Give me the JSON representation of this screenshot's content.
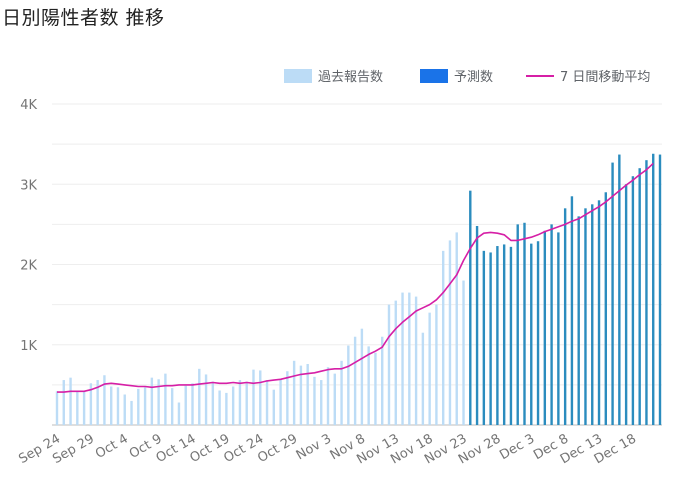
{
  "page": {
    "title": "日別陽性者数 推移"
  },
  "legend": {
    "reported_label": "過去報告数",
    "forecast_label": "予測数",
    "average_label": "7 日間移動平均"
  },
  "colors": {
    "reported": "#bcdcf6",
    "forecast": "#1a73e8",
    "forecast_edge": "#2b8cbe",
    "average": "#d61fa6",
    "grid": "#eeeeee",
    "axis_text": "#757575"
  },
  "chart_data": {
    "type": "bar",
    "title": "日別陽性者数 推移",
    "xlabel": "",
    "ylabel": "",
    "ylim": [
      0,
      4000
    ],
    "y_ticks": [
      "1K",
      "2K",
      "3K",
      "4K"
    ],
    "y_tick_values": [
      1000,
      2000,
      3000,
      4000
    ],
    "x_tick_labels": [
      "Sep 24",
      "Sep 29",
      "Oct 4",
      "Oct 9",
      "Oct 14",
      "Oct 19",
      "Oct 24",
      "Oct 29",
      "Nov 3",
      "Nov 8",
      "Nov 13",
      "Nov 18",
      "Nov 23",
      "Nov 28",
      "Dec 3",
      "Dec 8",
      "Dec 13",
      "Dec 18"
    ],
    "x_tick_every": 5,
    "grid": true,
    "legend_position": "top-right",
    "first_date": "Sep 24",
    "last_date": "Dec 18",
    "forecast_starts": "Nov 20",
    "series": [
      {
        "name": "過去報告数",
        "type": "bar",
        "values": [
          420,
          560,
          590,
          420,
          430,
          520,
          560,
          620,
          480,
          470,
          380,
          300,
          450,
          470,
          590,
          570,
          640,
          460,
          280,
          490,
          520,
          700,
          630,
          540,
          430,
          400,
          480,
          560,
          540,
          690,
          680,
          560,
          440,
          570,
          670,
          800,
          740,
          760,
          600,
          560,
          720,
          640,
          800,
          990,
          1100,
          1200,
          980,
          900,
          1100,
          1500,
          1550,
          1650,
          1650,
          1600,
          1150,
          1400,
          1500,
          2170,
          2300,
          2400,
          1800
        ]
      },
      {
        "name": "予測数",
        "type": "bar",
        "values": [
          2920,
          2480,
          2170,
          2150,
          2230,
          2250,
          2220,
          2500,
          2520,
          2260,
          2290,
          2420,
          2500,
          2400,
          2700,
          2850,
          2600,
          2700,
          2750,
          2800,
          2900,
          3270,
          3370,
          3000,
          3100,
          3200,
          3300,
          3380,
          3370
        ]
      },
      {
        "name": "7 日間移動平均",
        "type": "line",
        "values": [
          410,
          410,
          420,
          420,
          420,
          440,
          470,
          510,
          520,
          510,
          500,
          490,
          480,
          480,
          470,
          480,
          490,
          490,
          500,
          500,
          500,
          510,
          520,
          530,
          520,
          520,
          530,
          520,
          530,
          520,
          530,
          550,
          560,
          570,
          590,
          610,
          630,
          640,
          650,
          670,
          690,
          700,
          700,
          730,
          780,
          830,
          880,
          920,
          970,
          1100,
          1200,
          1280,
          1350,
          1420,
          1460,
          1500,
          1560,
          1650,
          1760,
          1870,
          2050,
          2200,
          2330,
          2390,
          2400,
          2390,
          2370,
          2300,
          2300,
          2320,
          2340,
          2370,
          2410,
          2440,
          2470,
          2500,
          2540,
          2570,
          2620,
          2670,
          2720,
          2780,
          2850,
          2920,
          2990,
          3050,
          3120,
          3180,
          3260
        ]
      }
    ]
  }
}
